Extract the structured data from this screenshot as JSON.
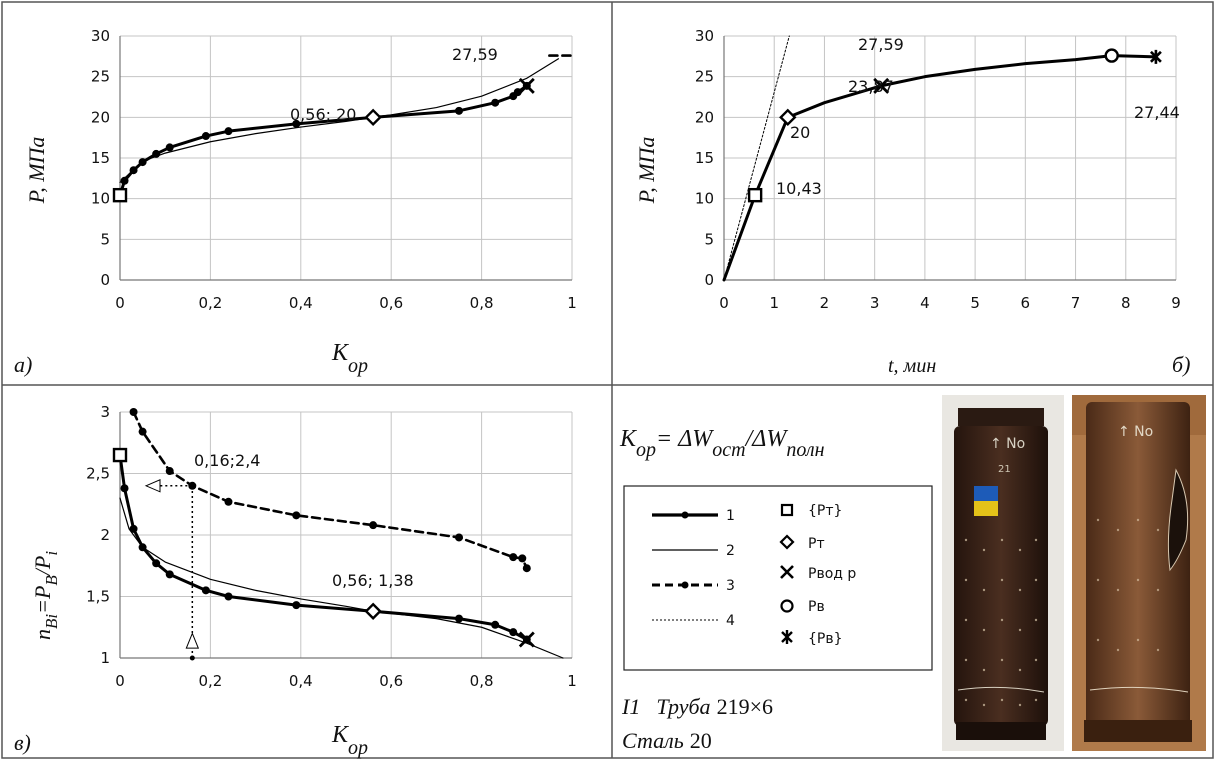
{
  "panels": {
    "a": {
      "tag": "a)",
      "y_axis_label": "P, МПа",
      "x_axis_label": "K",
      "x_axis_sub": "op",
      "annotations": [
        "27,59",
        "0,56; 20"
      ]
    },
    "b": {
      "tag": "б)",
      "y_axis_label": "P, МПа",
      "x_axis_label": "t, мин",
      "annotations": [
        "27,59",
        "23,87",
        "20",
        "10,43",
        "27,44"
      ]
    },
    "c": {
      "tag": "в)",
      "y_axis_label": "n",
      "y_axis_sub": "Bi",
      "y_axis_eq": "=P",
      "y_axis_sub2": "B",
      "y_axis_slash": "/P",
      "y_axis_sub3": "i",
      "x_axis_label": "K",
      "x_axis_sub": "op",
      "annotations": [
        "0,16;2,4",
        "0,56; 1,38"
      ]
    }
  },
  "info": {
    "formula": {
      "lhs": "K",
      "lhs_sub": "op",
      "eq": "= ΔW",
      "num_sub": "ост",
      "slash": "/ΔW",
      "den_sub": "полн"
    },
    "legend": {
      "lines": [
        "1",
        "2",
        "3",
        "4"
      ],
      "markers": [
        "{Рт}",
        "Рт",
        "Рвод р",
        "Рв",
        "{Рв}"
      ]
    },
    "caption_line1_a": "І1",
    "caption_line1_b": "Труба",
    "caption_line1_c": "219×6",
    "caption_line2_a": "Сталь",
    "caption_line2_b": "20",
    "photo_labels": [
      "↑ No",
      "21"
    ]
  },
  "colors": {
    "line": "#000000",
    "grid": "#bfbfbf",
    "photo_pipe_intact": "#3d2419",
    "photo_pipe_burst": "#6b4226",
    "photo_bg": "#e9e7e2",
    "photo_bg2": "#b07a4a"
  },
  "chart_data": [
    {
      "type": "line",
      "panel": "a",
      "xlim": [
        0,
        1
      ],
      "ylim": [
        0,
        30
      ],
      "xticks": [
        "0",
        "0,2",
        "0,4",
        "0,6",
        "0,8",
        "1"
      ],
      "yticks": [
        "0",
        "5",
        "10",
        "15",
        "20",
        "25",
        "30"
      ],
      "grid": true,
      "series": [
        {
          "name": "1",
          "style": "bold-dots",
          "x": [
            0,
            0.01,
            0.03,
            0.05,
            0.08,
            0.11,
            0.19,
            0.24,
            0.39,
            0.56,
            0.75,
            0.83,
            0.87,
            0.88,
            0.9
          ],
          "y": [
            10.43,
            12.2,
            13.5,
            14.5,
            15.5,
            16.3,
            17.7,
            18.3,
            19.2,
            20,
            20.8,
            21.8,
            22.6,
            23.1,
            23.87
          ]
        },
        {
          "name": "2",
          "style": "thin",
          "x": [
            0,
            0.05,
            0.1,
            0.2,
            0.3,
            0.4,
            0.5,
            0.56,
            0.6,
            0.7,
            0.8,
            0.9,
            0.97
          ],
          "y": [
            12.0,
            14.6,
            15.6,
            17.0,
            18.0,
            18.8,
            19.5,
            20,
            20.3,
            21.2,
            22.6,
            24.8,
            27.2
          ]
        },
        {
          "name": "3",
          "style": "dashed",
          "x": [
            0.95,
            1.0
          ],
          "y": [
            27.59,
            27.59
          ]
        }
      ],
      "markers": [
        {
          "kind": "square",
          "x": 0,
          "y": 10.43
        },
        {
          "kind": "diamond",
          "x": 0.56,
          "y": 20
        },
        {
          "kind": "cross",
          "x": 0.9,
          "y": 23.87
        }
      ]
    },
    {
      "type": "line",
      "panel": "b",
      "xlim": [
        0,
        9
      ],
      "ylim": [
        0,
        30
      ],
      "xticks": [
        "0",
        "1",
        "2",
        "3",
        "4",
        "5",
        "6",
        "7",
        "8",
        "9"
      ],
      "yticks": [
        "0",
        "5",
        "10",
        "15",
        "20",
        "25",
        "30"
      ],
      "grid": true,
      "series": [
        {
          "name": "1",
          "style": "bold",
          "x": [
            0,
            0.62,
            1.27,
            2.0,
            3.13,
            4.0,
            5.0,
            6.0,
            7.0,
            7.72,
            8.6
          ],
          "y": [
            0,
            10.43,
            20,
            21.8,
            23.87,
            25.0,
            25.9,
            26.6,
            27.1,
            27.59,
            27.44
          ]
        },
        {
          "name": "4",
          "style": "dotted",
          "x": [
            0,
            1.3
          ],
          "y": [
            0,
            30
          ]
        }
      ],
      "markers": [
        {
          "kind": "square",
          "x": 0.62,
          "y": 10.43
        },
        {
          "kind": "diamond",
          "x": 1.27,
          "y": 20
        },
        {
          "kind": "cross",
          "x": 3.13,
          "y": 23.87
        },
        {
          "kind": "circle",
          "x": 7.72,
          "y": 27.59
        },
        {
          "kind": "star",
          "x": 8.6,
          "y": 27.44
        }
      ]
    },
    {
      "type": "line",
      "panel": "c",
      "xlim": [
        0,
        1
      ],
      "ylim": [
        1,
        3
      ],
      "xticks": [
        "0",
        "0,2",
        "0,4",
        "0,6",
        "0,8",
        "1"
      ],
      "yticks": [
        "1",
        "1,5",
        "2",
        "2,5",
        "3"
      ],
      "grid": true,
      "series": [
        {
          "name": "1",
          "style": "bold-dots",
          "x": [
            0,
            0.01,
            0.03,
            0.05,
            0.08,
            0.11,
            0.19,
            0.24,
            0.39,
            0.56,
            0.75,
            0.83,
            0.87,
            0.9
          ],
          "y": [
            2.65,
            2.38,
            2.05,
            1.9,
            1.77,
            1.68,
            1.55,
            1.5,
            1.43,
            1.38,
            1.32,
            1.27,
            1.21,
            1.15
          ]
        },
        {
          "name": "2",
          "style": "thin",
          "x": [
            0,
            0.02,
            0.05,
            0.1,
            0.2,
            0.3,
            0.4,
            0.5,
            0.56,
            0.7,
            0.8,
            0.9,
            0.98
          ],
          "y": [
            2.3,
            2.05,
            1.9,
            1.78,
            1.64,
            1.55,
            1.48,
            1.42,
            1.38,
            1.32,
            1.25,
            1.12,
            1.0
          ]
        },
        {
          "name": "3",
          "style": "dashed-dots",
          "x": [
            0.03,
            0.05,
            0.11,
            0.16,
            0.24,
            0.39,
            0.56,
            0.75,
            0.87,
            0.89,
            0.9
          ],
          "y": [
            3.0,
            2.84,
            2.52,
            2.4,
            2.27,
            2.16,
            2.08,
            1.98,
            1.82,
            1.81,
            1.73
          ]
        }
      ],
      "markers": [
        {
          "kind": "square",
          "x": 0,
          "y": 2.65
        },
        {
          "kind": "diamond",
          "x": 0.56,
          "y": 1.38
        },
        {
          "kind": "cross",
          "x": 0.9,
          "y": 1.15
        }
      ],
      "guide": {
        "x": 0.16,
        "y": 2.4
      }
    }
  ]
}
